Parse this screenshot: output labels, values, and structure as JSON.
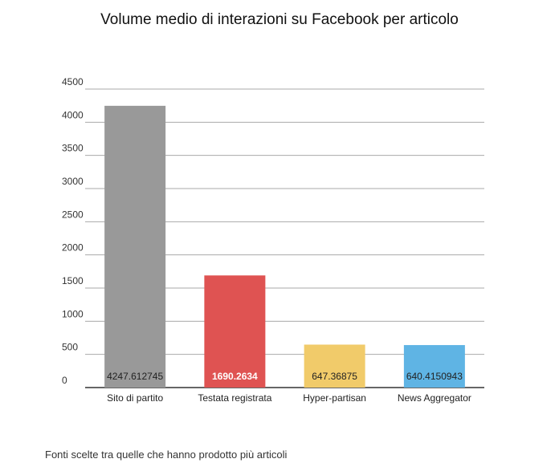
{
  "chart_data": {
    "type": "bar",
    "title": "Volume medio di interazioni su Facebook per articolo",
    "categories": [
      "Sito di partito",
      "Testata registrata",
      "Hyper-partisan",
      "News Aggregator"
    ],
    "values": [
      4247.612745,
      1690.2634,
      647.36875,
      640.4150943
    ],
    "value_labels": [
      "4247.612745",
      "1690.2634",
      "647.36875",
      "640.4150943"
    ],
    "colors": [
      "#999999",
      "#df5352",
      "#f1cb6a",
      "#5fb4e4"
    ],
    "label_colors": [
      "#222222",
      "#ffffff",
      "#222222",
      "#222222"
    ],
    "yticks": [
      0,
      500,
      1000,
      1500,
      2000,
      2500,
      3000,
      3500,
      4000,
      4500
    ],
    "ylim": [
      0,
      4500
    ],
    "grid": true,
    "xlabel": "",
    "ylabel": ""
  },
  "footnote": "Fonti scelte tra quelle che hanno prodotto più articoli"
}
